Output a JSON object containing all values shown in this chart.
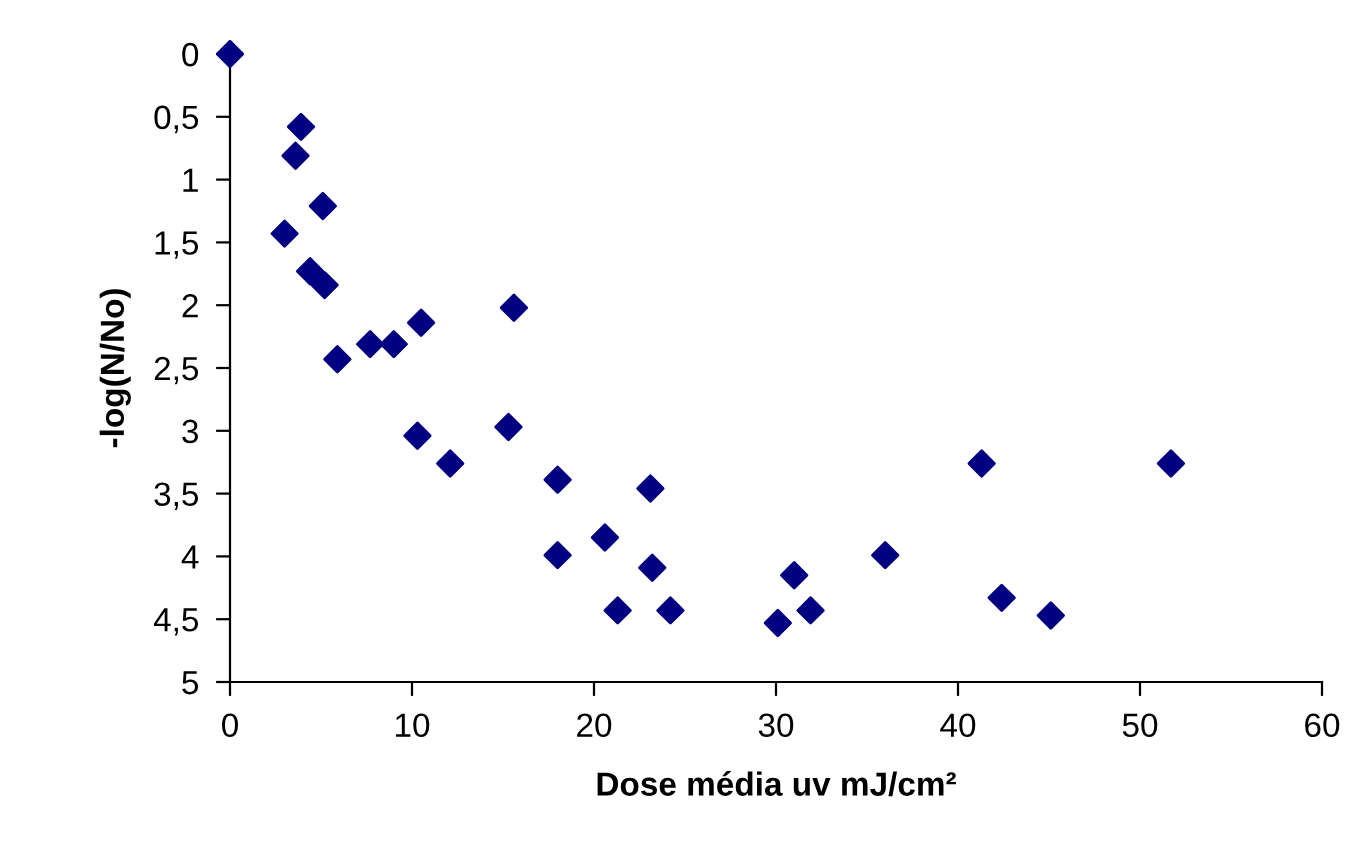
{
  "chart_data": {
    "type": "scatter",
    "xlabel": "Dose média uv mJ/cm²",
    "ylabel": "-log(N/No)",
    "x": [
      0,
      3.9,
      3.6,
      5.1,
      3.0,
      4.4,
      5.2,
      5.9,
      7.7,
      9.0,
      10.5,
      15.6,
      10.3,
      12.1,
      15.3,
      18.0,
      18.0,
      20.6,
      23.1,
      23.2,
      21.3,
      24.2,
      30.1,
      31.0,
      31.9,
      36.0,
      41.3,
      42.4,
      45.1,
      51.7
    ],
    "series": [
      {
        "color": "#000080",
        "values": [
          0,
          0.58,
          0.81,
          1.21,
          1.43,
          1.73,
          1.84,
          2.43,
          2.31,
          2.31,
          2.14,
          2.02,
          3.04,
          3.26,
          2.97,
          3.39,
          3.99,
          3.85,
          3.46,
          4.09,
          4.43,
          4.43,
          4.53,
          4.15,
          4.43,
          3.99,
          3.26,
          4.33,
          4.47,
          3.26
        ]
      }
    ],
    "marker": "diamond",
    "grid": false,
    "legend": false,
    "xlim": [
      0,
      60
    ],
    "xticks": [
      0,
      10,
      20,
      30,
      40,
      50,
      60
    ],
    "ylim": [
      5,
      0
    ],
    "yticks": [
      0,
      {
        "value": 0.5,
        "label": "0,5"
      },
      1,
      {
        "value": 1.5,
        "label": "1,5"
      },
      2,
      {
        "value": 2.5,
        "label": "2,5"
      },
      3,
      {
        "value": 3.5,
        "label": "3,5"
      },
      4,
      {
        "value": 4.5,
        "label": "4,5"
      },
      5
    ]
  }
}
